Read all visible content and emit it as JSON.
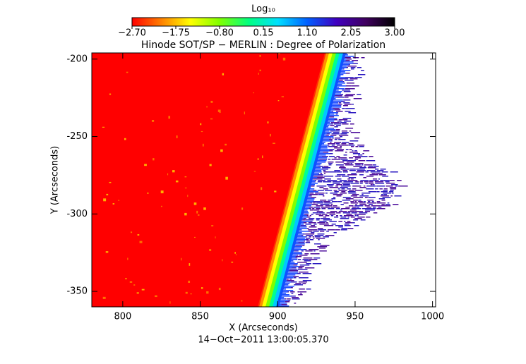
{
  "chart_data": {
    "type": "image",
    "title": "Hinode SOT/SP − MERLIN : Degree of Polarization",
    "x_label": "X (Arcseconds)",
    "y_label": "Y (Arcseconds)",
    "footer": "14−Oct−2011 13:00:05.370",
    "xlim": [
      780,
      1002
    ],
    "ylim": [
      -360,
      -196
    ],
    "xticks": [
      800,
      850,
      900,
      950,
      1000
    ],
    "yticks": [
      -200,
      -250,
      -300,
      -350
    ],
    "colorbar_label": "Log₁₀",
    "clim": [
      -2.7,
      3.0
    ],
    "cticks": [
      {
        "value": -2.7,
        "label": "−2.70"
      },
      {
        "value": -1.75,
        "label": "−1.75"
      },
      {
        "value": -0.8,
        "label": "−0.80"
      },
      {
        "value": 0.15,
        "label": "0.15"
      },
      {
        "value": 1.1,
        "label": "1.10"
      },
      {
        "value": 2.05,
        "label": "2.05"
      },
      {
        "value": 3.0,
        "label": "3.00"
      }
    ],
    "colormap": [
      "#ff0000",
      "#ff8000",
      "#ffff00",
      "#80ff00",
      "#00ff80",
      "#00e0ff",
      "#0060ff",
      "#4000c0",
      "#400060",
      "#000000"
    ]
  }
}
